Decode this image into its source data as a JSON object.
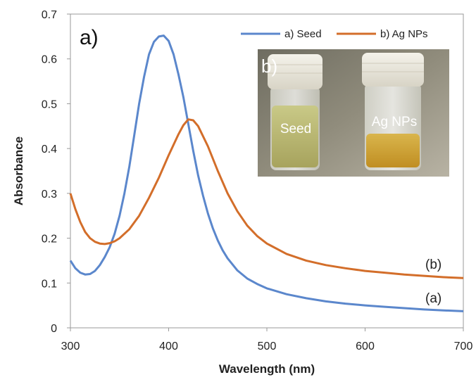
{
  "chart_data": {
    "type": "line",
    "xlabel": "Wavelength (nm)",
    "ylabel": "Absorbance",
    "xlim": [
      300,
      700
    ],
    "ylim": [
      0,
      0.7
    ],
    "xticks": [
      "300",
      "400",
      "500",
      "600",
      "700"
    ],
    "yticks": [
      "0",
      "0.1",
      "0.2",
      "0.3",
      "0.4",
      "0.5",
      "0.6",
      "0.7"
    ],
    "grid": false,
    "legend_position": "top-right",
    "series": [
      {
        "name": "a) Seed",
        "color": "#5b87cc",
        "x": [
          300,
          305,
          310,
          315,
          320,
          325,
          330,
          335,
          340,
          345,
          350,
          355,
          360,
          365,
          370,
          375,
          380,
          385,
          390,
          395,
          400,
          405,
          410,
          415,
          420,
          425,
          430,
          435,
          440,
          445,
          450,
          455,
          460,
          470,
          480,
          490,
          500,
          520,
          540,
          560,
          580,
          600,
          620,
          640,
          660,
          680,
          700
        ],
        "y": [
          0.15,
          0.133,
          0.123,
          0.119,
          0.12,
          0.127,
          0.14,
          0.158,
          0.18,
          0.21,
          0.25,
          0.3,
          0.36,
          0.43,
          0.5,
          0.56,
          0.61,
          0.638,
          0.65,
          0.652,
          0.64,
          0.61,
          0.565,
          0.515,
          0.455,
          0.395,
          0.34,
          0.295,
          0.255,
          0.222,
          0.195,
          0.173,
          0.155,
          0.128,
          0.11,
          0.098,
          0.088,
          0.075,
          0.066,
          0.059,
          0.054,
          0.05,
          0.047,
          0.044,
          0.041,
          0.039,
          0.037
        ]
      },
      {
        "name": "b) Ag NPs",
        "color": "#d36e2a",
        "x": [
          300,
          305,
          310,
          315,
          320,
          325,
          330,
          335,
          340,
          345,
          350,
          360,
          370,
          380,
          390,
          400,
          410,
          415,
          420,
          425,
          430,
          440,
          450,
          460,
          470,
          480,
          490,
          500,
          520,
          540,
          560,
          580,
          600,
          620,
          640,
          660,
          680,
          700
        ],
        "y": [
          0.3,
          0.265,
          0.236,
          0.214,
          0.2,
          0.192,
          0.188,
          0.187,
          0.189,
          0.193,
          0.2,
          0.22,
          0.25,
          0.29,
          0.335,
          0.385,
          0.432,
          0.452,
          0.465,
          0.463,
          0.45,
          0.405,
          0.35,
          0.3,
          0.26,
          0.228,
          0.205,
          0.188,
          0.165,
          0.15,
          0.14,
          0.133,
          0.127,
          0.123,
          0.119,
          0.116,
          0.113,
          0.111
        ]
      }
    ],
    "annotations": [
      "a)",
      "(a)",
      "(b)"
    ]
  },
  "inset": {
    "panel_label": "b)",
    "left_vial_label": "Seed",
    "right_vial_label": "Ag NPs"
  }
}
